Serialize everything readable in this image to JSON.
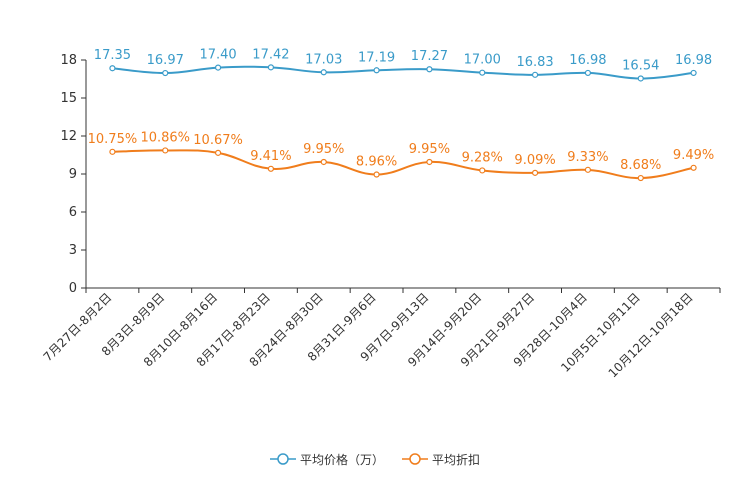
{
  "chart_data": {
    "type": "line",
    "categories": [
      "7月27日-8月2日",
      "8月3日-8月9日",
      "8月10日-8月16日",
      "8月17日-8月23日",
      "8月24日-8月30日",
      "8月31日-9月6日",
      "9月7日-9月13日",
      "9月14日-9月20日",
      "9月21日-9月27日",
      "9月28日-10月4日",
      "10月5日-10月11日",
      "10月12日-10月18日"
    ],
    "ylim": [
      0,
      18
    ],
    "yticks": [
      0,
      3,
      6,
      9,
      12,
      15,
      18
    ],
    "series": [
      {
        "name": "平均价格（万）",
        "color": "#3a9bc9",
        "values": [
          17.35,
          16.97,
          17.4,
          17.42,
          17.03,
          17.19,
          17.27,
          17.0,
          16.83,
          16.98,
          16.54,
          16.98
        ],
        "labels": [
          "17.35",
          "16.97",
          "17.40",
          "17.42",
          "17.03",
          "17.19",
          "17.27",
          "17.00",
          "16.83",
          "16.98",
          "16.54",
          "16.98"
        ]
      },
      {
        "name": "平均折扣",
        "color": "#f07d1c",
        "values": [
          10.75,
          10.86,
          10.67,
          9.41,
          9.95,
          8.96,
          9.95,
          9.28,
          9.09,
          9.33,
          8.68,
          9.49
        ],
        "labels": [
          "10.75%",
          "10.86%",
          "10.67%",
          "9.41%",
          "9.95%",
          "8.96%",
          "9.95%",
          "9.28%",
          "9.09%",
          "9.33%",
          "8.68%",
          "9.49%"
        ]
      }
    ],
    "legend_position": "bottom-center"
  }
}
